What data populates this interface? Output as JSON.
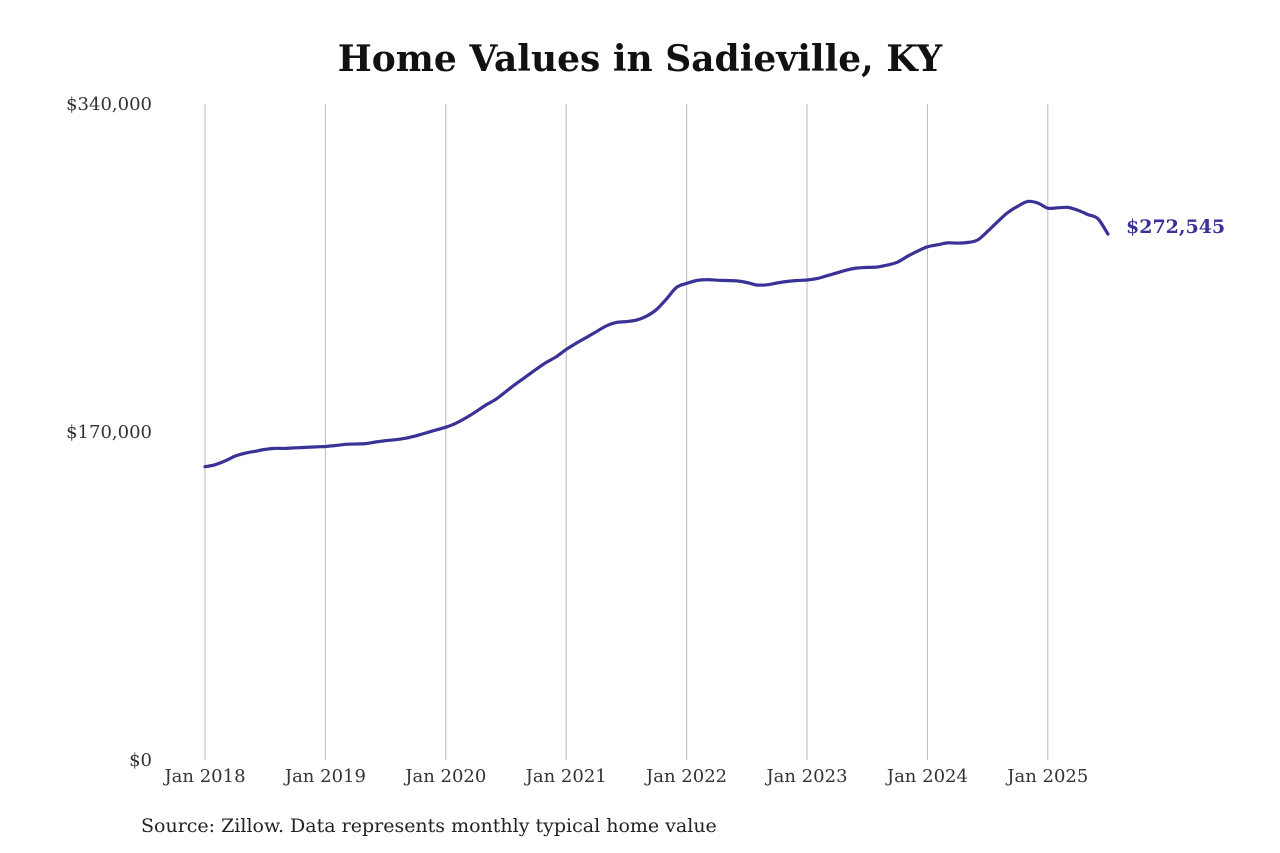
{
  "chart_data": {
    "type": "line",
    "title": "Home Values in Sadieville, KY",
    "source": "Source: Zillow. Data represents monthly typical home value",
    "xlabel": "",
    "ylabel": "",
    "ylim": [
      0,
      340000
    ],
    "y_ticks": [
      {
        "value": 0,
        "label": "$0"
      },
      {
        "value": 170000,
        "label": "$170,000"
      },
      {
        "value": 340000,
        "label": "$340,000"
      }
    ],
    "x_range": [
      "2018-01",
      "2025-07"
    ],
    "x_ticks": [
      {
        "date": "2018-01",
        "label": "Jan 2018"
      },
      {
        "date": "2019-01",
        "label": "Jan 2019"
      },
      {
        "date": "2020-01",
        "label": "Jan 2020"
      },
      {
        "date": "2021-01",
        "label": "Jan 2021"
      },
      {
        "date": "2022-01",
        "label": "Jan 2022"
      },
      {
        "date": "2023-01",
        "label": "Jan 2023"
      },
      {
        "date": "2024-01",
        "label": "Jan 2024"
      },
      {
        "date": "2025-01",
        "label": "Jan 2025"
      }
    ],
    "grid": {
      "vertical": true,
      "horizontal": false
    },
    "line_color": "#3a3296",
    "end_label": "$272,545",
    "series": [
      {
        "x": [
          "2018-01",
          "2018-02",
          "2018-03",
          "2018-04",
          "2018-05",
          "2018-06",
          "2018-07",
          "2018-08",
          "2018-09",
          "2018-10",
          "2018-11",
          "2018-12",
          "2019-01",
          "2019-02",
          "2019-03",
          "2019-04",
          "2019-05",
          "2019-06",
          "2019-07",
          "2019-08",
          "2019-09",
          "2019-10",
          "2019-11",
          "2019-12",
          "2020-01",
          "2020-02",
          "2020-03",
          "2020-04",
          "2020-05",
          "2020-06",
          "2020-07",
          "2020-08",
          "2020-09",
          "2020-10",
          "2020-11",
          "2020-12",
          "2021-01",
          "2021-02",
          "2021-03",
          "2021-04",
          "2021-05",
          "2021-06",
          "2021-07",
          "2021-08",
          "2021-09",
          "2021-10",
          "2021-11",
          "2021-12",
          "2022-01",
          "2022-02",
          "2022-03",
          "2022-04",
          "2022-05",
          "2022-06",
          "2022-07",
          "2022-08",
          "2022-09",
          "2022-10",
          "2022-11",
          "2022-12",
          "2023-01",
          "2023-02",
          "2023-03",
          "2023-04",
          "2023-05",
          "2023-06",
          "2023-07",
          "2023-08",
          "2023-09",
          "2023-10",
          "2023-11",
          "2023-12",
          "2024-01",
          "2024-02",
          "2024-03",
          "2024-04",
          "2024-05",
          "2024-06",
          "2024-07",
          "2024-08",
          "2024-09",
          "2024-10",
          "2024-11",
          "2024-12",
          "2025-01",
          "2025-02",
          "2025-03",
          "2025-04",
          "2025-05",
          "2025-06",
          "2025-07"
        ],
        "values": [
          152000,
          153000,
          155000,
          157500,
          159000,
          160000,
          161000,
          161500,
          161500,
          161800,
          162000,
          162300,
          162500,
          163000,
          163600,
          163800,
          164000,
          164800,
          165500,
          166000,
          166800,
          168000,
          169500,
          171000,
          172500,
          174500,
          177300,
          180500,
          184000,
          187000,
          191000,
          195000,
          198700,
          202500,
          206000,
          209000,
          212800,
          216000,
          219000,
          222000,
          225000,
          226800,
          227200,
          228000,
          230000,
          233500,
          239000,
          245000,
          247000,
          248500,
          249000,
          248700,
          248500,
          248300,
          247500,
          246200,
          246300,
          247200,
          248000,
          248500,
          248800,
          249500,
          251000,
          252500,
          254000,
          255000,
          255300,
          255500,
          256500,
          258000,
          261000,
          263700,
          266000,
          267000,
          268000,
          267900,
          268200,
          269500,
          274000,
          279000,
          283700,
          287000,
          289500,
          288700,
          286000,
          286200,
          286400,
          284900,
          282700,
          280500,
          272545
        ]
      }
    ]
  }
}
